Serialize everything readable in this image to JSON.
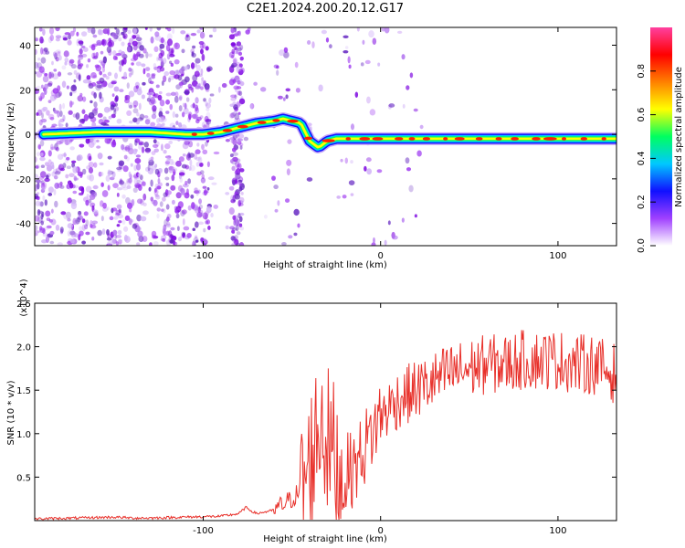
{
  "title": "C2E1.2024.200.20.12.G17",
  "chart_data": [
    {
      "type": "heatmap",
      "xlabel": "Height of straight line (km)",
      "ylabel": "Frequency (Hz)",
      "xlim": [
        -195,
        133
      ],
      "ylim": [
        -50,
        48
      ],
      "x_ticks": [
        -100,
        0,
        100
      ],
      "x_tick_labels": [
        "-100",
        "0",
        "100"
      ],
      "y_ticks": [
        -40,
        -20,
        0,
        20,
        40
      ],
      "y_tick_labels": [
        "-40",
        "-20",
        "0",
        "20",
        "40"
      ],
      "ridge": {
        "x": [
          -190,
          -160,
          -130,
          -110,
          -100,
          -90,
          -80,
          -70,
          -60,
          -55,
          -50,
          -45,
          -40,
          -35,
          -30,
          -25,
          -20,
          -10,
          0,
          20,
          40,
          60,
          80,
          100,
          120,
          133
        ],
        "frequency": [
          0,
          1,
          1,
          0,
          0,
          1,
          3,
          5,
          6,
          7,
          6,
          5,
          -3,
          -6,
          -3,
          -2,
          -2,
          -2,
          -2,
          -2,
          -2,
          -2,
          -2,
          -2,
          -2,
          -2
        ]
      },
      "colorbar": {
        "label": "Normalized spectral amplitude",
        "range": [
          0.0,
          1.0
        ],
        "ticks": [
          0.0,
          0.2,
          0.4,
          0.6,
          0.8
        ],
        "tick_labels": [
          "0.0",
          "0.2",
          "0.4",
          "0.6",
          "0.8"
        ],
        "colors": [
          "#ffffff",
          "#a040ff",
          "#1010ff",
          "#00c8ff",
          "#00ff60",
          "#ffff00",
          "#ff8000",
          "#ff0000",
          "#ff40a0"
        ]
      }
    },
    {
      "type": "line",
      "xlabel": "Height of straight line (km)",
      "ylabel": "SNR (10 * v/v)",
      "multiplier": "(x10^4)",
      "xlim": [
        -195,
        133
      ],
      "ylim": [
        0,
        2.5
      ],
      "x_ticks": [
        -100,
        0,
        100
      ],
      "x_tick_labels": [
        "-100",
        "0",
        "100"
      ],
      "y_ticks": [
        0.5,
        1.0,
        1.5,
        2.0,
        2.5
      ],
      "y_tick_labels": [
        "0.5",
        "1.0",
        "1.5",
        "2.0",
        "2.5"
      ],
      "color": "#e8302a",
      "series": [
        {
          "x": [
            -195,
            -170,
            -150,
            -140,
            -130,
            -110,
            -90,
            -80,
            -76,
            -70,
            -60,
            -50,
            -45,
            -40,
            -36,
            -33,
            -30,
            -27,
            -24,
            -20,
            -15,
            -10,
            -5,
            0,
            10,
            20,
            30,
            40,
            50,
            60,
            70,
            80,
            90,
            100,
            110,
            120,
            130,
            133
          ],
          "values": [
            0.02,
            0.03,
            0.04,
            0.03,
            0.03,
            0.04,
            0.05,
            0.08,
            0.15,
            0.08,
            0.12,
            0.25,
            0.35,
            0.6,
            1.0,
            1.2,
            0.9,
            0.8,
            0.5,
            0.55,
            0.6,
            0.8,
            1.0,
            1.2,
            1.4,
            1.5,
            1.6,
            1.7,
            1.75,
            1.8,
            1.8,
            1.85,
            1.85,
            1.85,
            1.8,
            1.8,
            1.7,
            1.7
          ]
        }
      ]
    }
  ]
}
